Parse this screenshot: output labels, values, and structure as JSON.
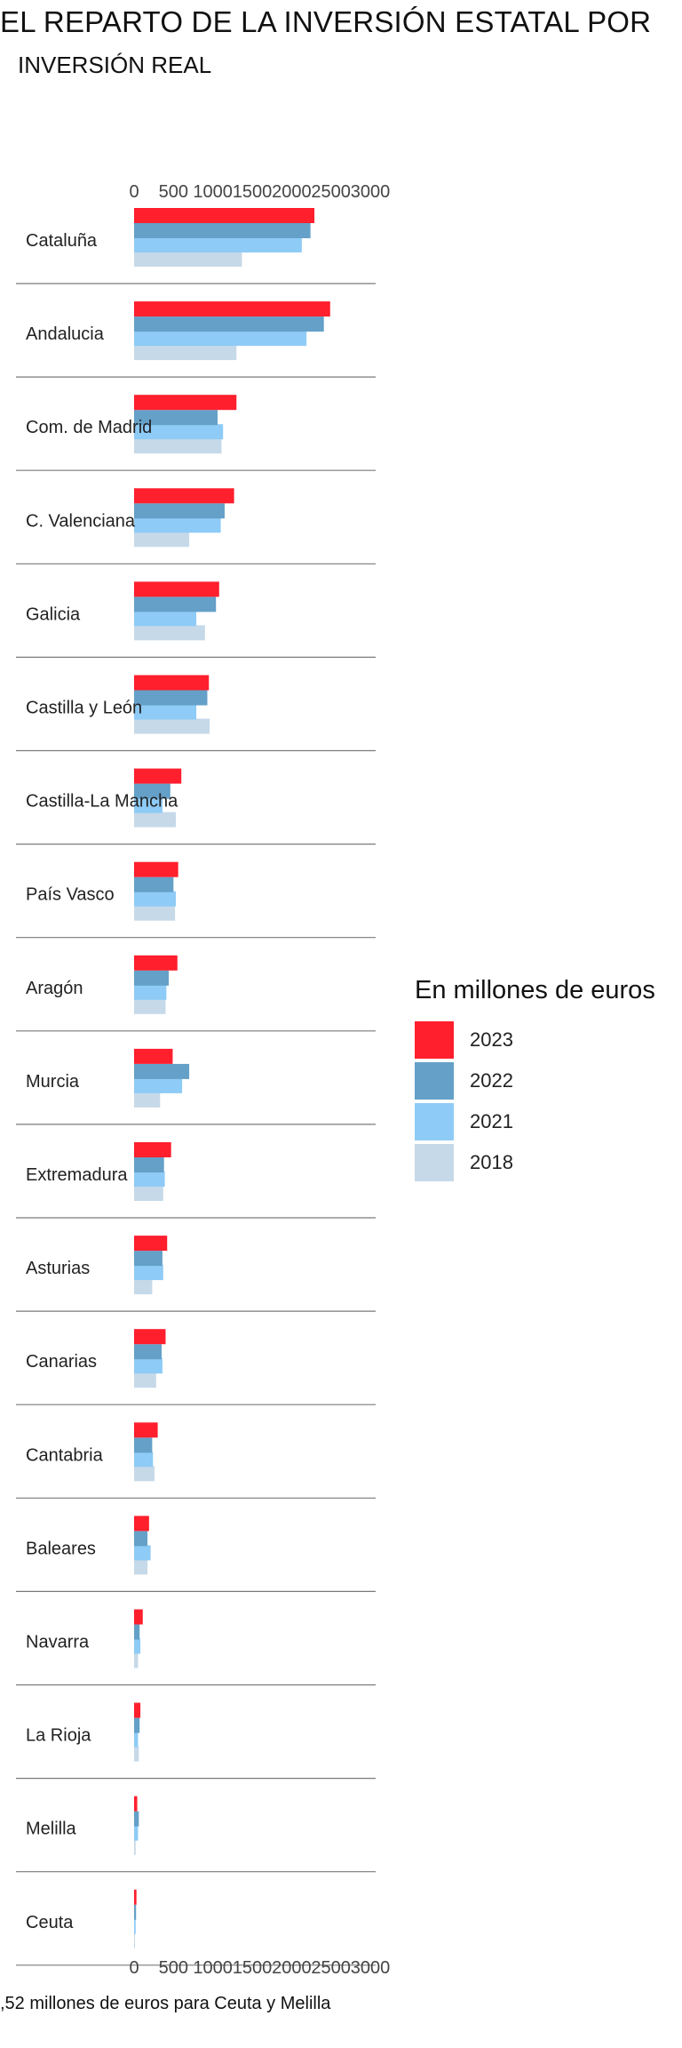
{
  "title": "EL REPARTO DE LA INVERSIÓN ESTATAL POR",
  "subtitle": "INVERSIÓN REAL",
  "footnote": ",52 millones de euros para Ceuta y Melilla",
  "colors": {
    "2023": "#ff1f2d",
    "2022": "#64a0c8",
    "2021": "#8ecbf6",
    "2018": "#c6d9e8",
    "divider": "#7a7a7a"
  },
  "chart_data": {
    "type": "bar",
    "orientation": "horizontal",
    "title": "EL REPARTO DE LA INVERSIÓN ESTATAL POR",
    "subtitle": "INVERSIÓN REAL",
    "legend_title": "En millones de euros",
    "legend_position": "right",
    "xlim": [
      0,
      3000
    ],
    "ticks": [
      "0",
      "500",
      "1000",
      "1500",
      "2000",
      "2500",
      "3000"
    ],
    "categories": [
      "Cataluña",
      "Andalucia",
      "Com. de Madrid",
      "C. Valenciana",
      "Galicia",
      "Castilla y León",
      "Castilla-La Mancha",
      "País Vasco",
      "Aragón",
      "Murcia",
      "Extremadura",
      "Asturias",
      "Canarias",
      "Cantabria",
      "Baleares",
      "Navarra",
      "La Rioja",
      "Melilla",
      "Ceuta"
    ],
    "series": [
      {
        "name": "2023",
        "values": [
          2290,
          2490,
          1300,
          1270,
          1080,
          950,
          600,
          560,
          550,
          490,
          470,
          420,
          400,
          300,
          190,
          110,
          80,
          40,
          30
        ]
      },
      {
        "name": "2022",
        "values": [
          2240,
          2410,
          1060,
          1150,
          1040,
          930,
          460,
          500,
          440,
          700,
          380,
          360,
          350,
          230,
          170,
          70,
          70,
          60,
          25
        ]
      },
      {
        "name": "2021",
        "values": [
          2130,
          2190,
          1130,
          1100,
          790,
          790,
          360,
          530,
          410,
          610,
          390,
          370,
          360,
          240,
          210,
          80,
          50,
          50,
          20
        ]
      },
      {
        "name": "2018",
        "values": [
          1370,
          1300,
          1110,
          700,
          900,
          960,
          530,
          520,
          400,
          330,
          370,
          230,
          280,
          260,
          170,
          50,
          60,
          20,
          10
        ]
      }
    ]
  }
}
